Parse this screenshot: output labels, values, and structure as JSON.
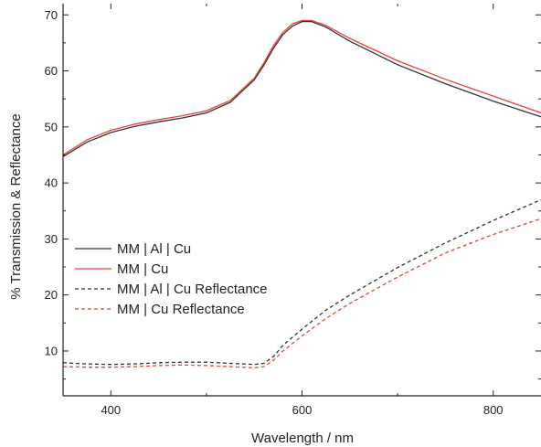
{
  "chart_data": {
    "type": "line",
    "title": "",
    "xlabel": "Wavelength / nm",
    "ylabel": "% Transmission & Reflectance",
    "xlim": [
      350,
      850
    ],
    "ylim": [
      2,
      72
    ],
    "x_ticks": [
      400,
      600,
      800
    ],
    "y_ticks": [
      10,
      20,
      30,
      40,
      50,
      60,
      70
    ],
    "grid": false,
    "legend": {
      "placement": "center-left"
    },
    "series": [
      {
        "name": "MM | Al | Cu",
        "color": "#333333",
        "dash": "solid",
        "x": [
          350,
          375,
          400,
          425,
          450,
          475,
          500,
          525,
          550,
          560,
          570,
          580,
          590,
          600,
          610,
          625,
          650,
          700,
          750,
          800,
          850
        ],
        "y": [
          44.7,
          47.3,
          49.0,
          50.1,
          50.9,
          51.6,
          52.5,
          54.4,
          58.4,
          61.0,
          64.0,
          66.5,
          68.0,
          68.8,
          68.8,
          67.8,
          65.3,
          61.1,
          57.7,
          54.6,
          51.8
        ]
      },
      {
        "name": "MM | Cu",
        "color": "#e8413a",
        "dash": "solid",
        "x": [
          350,
          375,
          400,
          425,
          450,
          475,
          500,
          525,
          550,
          560,
          570,
          580,
          590,
          600,
          610,
          625,
          650,
          700,
          750,
          800,
          850
        ],
        "y": [
          45.0,
          47.7,
          49.4,
          50.5,
          51.3,
          52.0,
          52.9,
          54.7,
          58.7,
          61.4,
          64.5,
          66.9,
          68.4,
          69.0,
          69.0,
          68.1,
          65.8,
          61.8,
          58.5,
          55.5,
          52.5
        ]
      },
      {
        "name": "MM | Al | Cu Reflectance",
        "color": "#333333",
        "dash": "dashed",
        "x": [
          350,
          375,
          400,
          425,
          450,
          475,
          500,
          525,
          550,
          560,
          570,
          580,
          600,
          625,
          650,
          700,
          750,
          800,
          850
        ],
        "y": [
          7.9,
          7.7,
          7.6,
          7.7,
          7.9,
          8.0,
          8.0,
          7.8,
          7.6,
          7.8,
          9.0,
          11.0,
          13.9,
          17.3,
          20.0,
          24.9,
          29.3,
          33.3,
          37.0
        ]
      },
      {
        "name": "MM | Cu Reflectance",
        "color": "#e8413a",
        "dash": "dashed",
        "x": [
          350,
          375,
          400,
          425,
          450,
          475,
          500,
          525,
          550,
          560,
          570,
          580,
          600,
          625,
          650,
          700,
          750,
          800,
          850
        ],
        "y": [
          7.2,
          7.1,
          7.1,
          7.2,
          7.4,
          7.5,
          7.4,
          7.2,
          7.0,
          7.2,
          8.3,
          10.0,
          12.7,
          15.8,
          18.5,
          23.2,
          27.5,
          30.8,
          33.6
        ]
      }
    ]
  }
}
